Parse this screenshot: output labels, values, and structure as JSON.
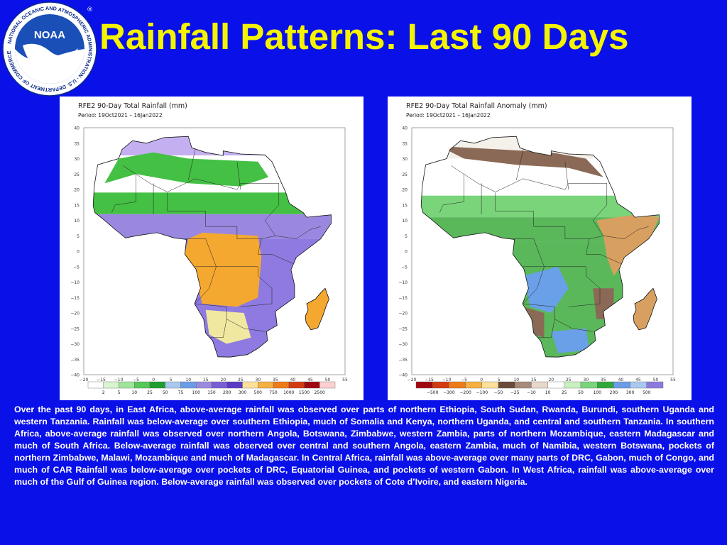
{
  "logo": {
    "text": "NOAA",
    "ring_text": "NATIONAL OCEANIC AND ATMOSPHERIC ADMINISTRATION · U.S. DEPARTMENT OF COMMERCE",
    "registered_mark": "®"
  },
  "title": "Rainfall Patterns: Last 90 Days",
  "maps": [
    {
      "title": "RFE2 90-Day Total Rainfall (mm)",
      "period": "Period: 19Oct2021 – 16Jan2022",
      "lat_ticks": [
        "40",
        "35",
        "30",
        "25",
        "20",
        "15",
        "10",
        "5",
        "0",
        "−5",
        "−10",
        "−15",
        "−20",
        "−25",
        "−30",
        "−35",
        "−40"
      ],
      "lon_ticks": [
        "−20",
        "−15",
        "−10",
        "−5",
        "0",
        "5",
        "10",
        "15",
        "20",
        "25",
        "30",
        "35",
        "40",
        "45",
        "50",
        "55"
      ],
      "legend_labels": [
        "2",
        "5",
        "10",
        "25",
        "50",
        "75",
        "100",
        "150",
        "200",
        "300",
        "500",
        "750",
        "1000",
        "1500",
        "2500"
      ],
      "legend_colors": [
        "#ffffff",
        "#d8f5d0",
        "#9ee59a",
        "#55c855",
        "#1e9e2e",
        "#a8c8f0",
        "#6a9ce8",
        "#9a8ae0",
        "#7a5ed6",
        "#5a3ac4",
        "#ffe09a",
        "#f5b040",
        "#ee7a18",
        "#d23a10",
        "#a00810",
        "#ffd0d0"
      ],
      "colors": {
        "north": "#c4b0f0",
        "sahara": "#ffffff",
        "sahel": "#44c044",
        "guinea": "#9a88e0",
        "congo": "#f5a830",
        "south": "#8e7ae0",
        "kalahari": "#f0e8a0",
        "madagascar": "#f5a830"
      }
    },
    {
      "title": "RFE2 90-Day Total Rainfall Anomaly (mm)",
      "period": "Period: 19Oct2021 – 16Jan2022",
      "lat_ticks": [
        "40",
        "35",
        "30",
        "25",
        "20",
        "15",
        "10",
        "5",
        "0",
        "−5",
        "−10",
        "−15",
        "−20",
        "−25",
        "−30",
        "−35",
        "−40"
      ],
      "lon_ticks": [
        "−20",
        "−15",
        "−10",
        "−5",
        "0",
        "5",
        "10",
        "15",
        "20",
        "25",
        "30",
        "35",
        "40",
        "45",
        "50",
        "55"
      ],
      "legend_labels": [
        "−500",
        "−300",
        "−200",
        "−100",
        "−50",
        "−25",
        "−10",
        "10",
        "25",
        "50",
        "100",
        "200",
        "300",
        "500"
      ],
      "legend_colors": [
        "#a00810",
        "#d23a10",
        "#ee7a18",
        "#f5b040",
        "#ffe09a",
        "#6a4a3a",
        "#a88a78",
        "#e8d8cc",
        "#ffffff",
        "#c8f0c0",
        "#7ad47a",
        "#2ea83a",
        "#6a9ce8",
        "#a8c8f0",
        "#8a7ae0"
      ],
      "colors": {
        "north": "#f4f0ea",
        "sahara": "#ffffff",
        "sahel": "#7ad47a",
        "guinea": "#5ab85a",
        "congo": "#5ab85a",
        "horn": "#d8a060",
        "south": "#6aa0e8",
        "dry": "#8a6a56",
        "madagascar": "#d8a060"
      }
    }
  ],
  "paragraph": "Over the past 90 days, in East Africa, above-average rainfall was observed over parts of northern Ethiopia, South Sudan, Rwanda, Burundi, southern Uganda and western Tanzania. Rainfall was below-average over southern Ethiopia, much of Somalia and Kenya, northern Uganda, and central and southern Tanzania. In southern Africa, above-average rainfall was observed over northern Angola, Botswana, Zimbabwe, western Zambia, parts of northern Mozambique, eastern Madagascar and much of South Africa. Below-average rainfall was observed over central and southern Angola, eastern Zambia, much of Namibia, western Botswana, pockets of northern Zimbabwe, Malawi, Mozambique and much of Madagascar. In Central Africa, rainfall was above-average over many parts of DRC, Gabon, much of Congo, and much of CAR  Rainfall was below-average over pockets of DRC, Equatorial Guinea, and pockets of western Gabon. In West Africa, rainfall was above-average over much of the Gulf of Guinea region. Below-average rainfall was observed over pockets of Cote d’Ivoire, and eastern Nigeria."
}
